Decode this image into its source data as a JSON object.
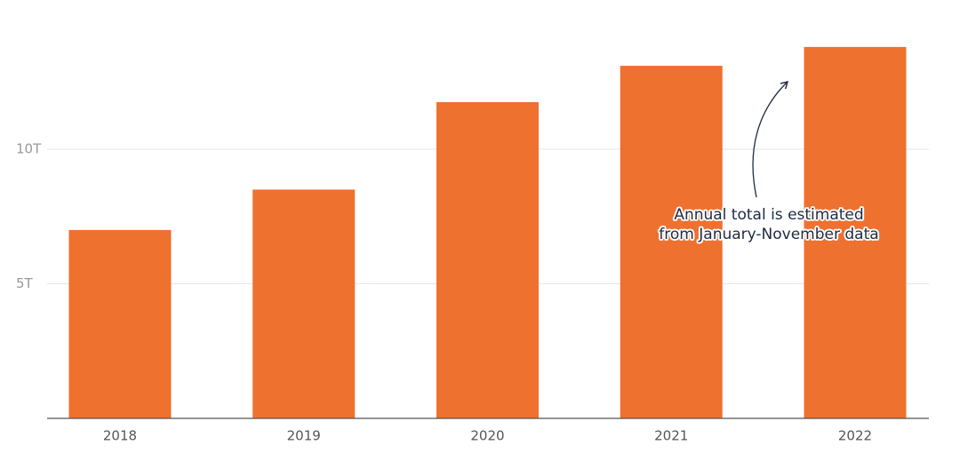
{
  "chart_data": {
    "type": "bar",
    "categories": [
      "2018",
      "2019",
      "2020",
      "2021",
      "2022"
    ],
    "values": [
      7.0,
      8.5,
      11.75,
      13.1,
      13.8
    ],
    "color": "#ee7130",
    "ylim": [
      0,
      15
    ],
    "yticks": [
      {
        "value": 5,
        "label": "5T"
      },
      {
        "value": 10,
        "label": "10T"
      }
    ],
    "grid": true,
    "annotation": "Annual total is estimated from January-November data"
  }
}
